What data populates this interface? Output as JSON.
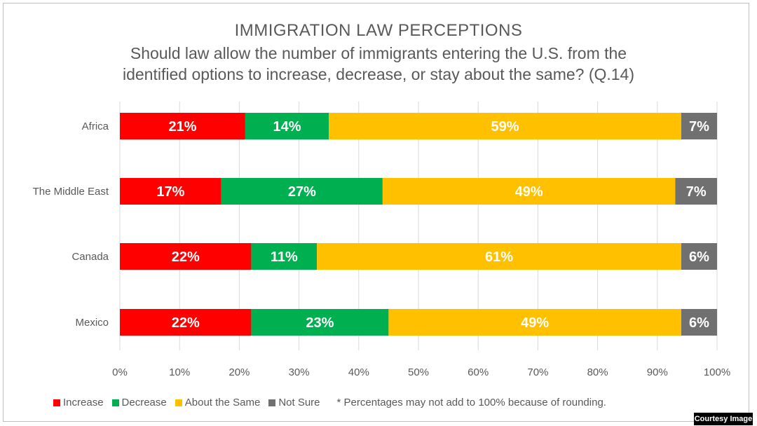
{
  "chart_data": {
    "type": "bar",
    "orientation": "horizontal",
    "stacked": true,
    "title": "IMMIGRATION  LAW PERCEPTIONS",
    "subtitle_line1": "Should law allow the number of immigrants entering the U.S. from the",
    "subtitle_line2": "identified options to increase, decrease, or stay about the same? (Q.14)",
    "categories": [
      "Africa",
      "The Middle East",
      "Canada",
      "Mexico"
    ],
    "series": [
      {
        "name": "Increase",
        "color": "#ff0000",
        "values": [
          21,
          17,
          22,
          22
        ]
      },
      {
        "name": "Decrease",
        "color": "#00b050",
        "values": [
          14,
          27,
          11,
          23
        ]
      },
      {
        "name": "About the Same",
        "color": "#ffc000",
        "values": [
          59,
          49,
          61,
          49
        ]
      },
      {
        "name": "Not Sure",
        "color": "#707070",
        "values": [
          7,
          7,
          6,
          6
        ]
      }
    ],
    "xlim": [
      0,
      100
    ],
    "x_ticks": [
      "0%",
      "10%",
      "20%",
      "30%",
      "40%",
      "50%",
      "60%",
      "70%",
      "80%",
      "90%",
      "100%"
    ],
    "grid": true,
    "legend_position": "bottom",
    "footnote": "* Percentages may not add to 100% because of rounding."
  },
  "credit": "Courtesy Image"
}
